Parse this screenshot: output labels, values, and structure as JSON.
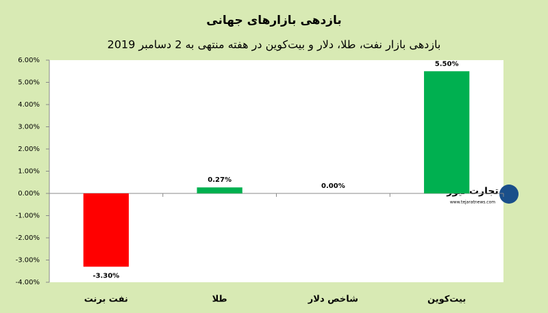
{
  "chart_data": {
    "type": "bar",
    "title": "بازدهی بازارهای جهانی",
    "subtitle": "بازدهی بازار نفت، طلا، دلار و بیت‌کوین در هفته منتهی به 2 دسامبر 2019",
    "categories": [
      "نفت برنت",
      "طلا",
      "شاخص دلار",
      "بیت‌کوین"
    ],
    "values": [
      -3.3,
      0.27,
      0,
      5.5
    ],
    "value_labels": [
      "-3.30%",
      "0.27%",
      "0.00%",
      "5.50%"
    ],
    "colors": [
      "#ff0000",
      "#00b050",
      "#00b050",
      "#00b050"
    ],
    "ylim": [
      -4,
      6
    ],
    "yticks": [
      {
        "value": -4,
        "label": "-4.00%"
      },
      {
        "value": -3,
        "label": "-3.00%"
      },
      {
        "value": -2,
        "label": "-2.00%"
      },
      {
        "value": -1,
        "label": "-1.00%"
      },
      {
        "value": 0,
        "label": "0.00%"
      },
      {
        "value": 1,
        "label": "1.00%"
      },
      {
        "value": 2,
        "label": "2.00%"
      },
      {
        "value": 3,
        "label": "3.00%"
      },
      {
        "value": 4,
        "label": "4.00%"
      },
      {
        "value": 5,
        "label": "5.00%"
      },
      {
        "value": 6,
        "label": "6.00%"
      }
    ],
    "grid": false,
    "watermark": "تجارت نیوز",
    "watermark_url": "www.tejaratnews.com"
  }
}
